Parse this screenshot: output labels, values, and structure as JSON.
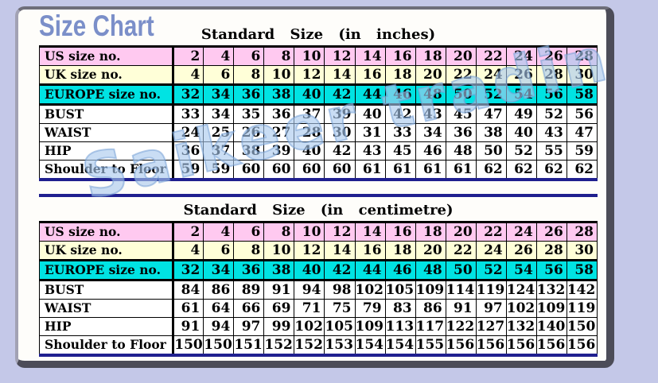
{
  "page_title": "Size Chart",
  "watermark": "Saikeer trading",
  "colors": {
    "background": "#c4c8e8",
    "panel": "#fefdfa",
    "title_blue": "#7b8fc9",
    "row_pink": "#ffc9f0",
    "row_yellow": "#ffffd8",
    "row_cyan": "#00e3e3",
    "row_white": "#ffffff",
    "divider_navy": "#1f1f8f",
    "watermark_blue": "#a8c8ee"
  },
  "chart_data": [
    {
      "type": "table",
      "title": "Standard Size (in inches)",
      "rows": [
        {
          "label": "US size no.",
          "bg": "pink",
          "values": [
            2,
            4,
            6,
            8,
            10,
            12,
            14,
            16,
            18,
            20,
            22,
            24,
            26,
            28
          ]
        },
        {
          "label": "UK size no.",
          "bg": "yellow",
          "values": [
            4,
            6,
            8,
            10,
            12,
            14,
            16,
            18,
            20,
            22,
            24,
            26,
            28,
            30
          ]
        },
        {
          "label": "EUROPE size no.",
          "bg": "cyan",
          "values": [
            32,
            34,
            36,
            38,
            40,
            42,
            44,
            46,
            48,
            50,
            52,
            54,
            56,
            58
          ]
        },
        {
          "label": "BUST",
          "bg": "white",
          "values": [
            33,
            34,
            35,
            36,
            37,
            39,
            40,
            42,
            43,
            45,
            47,
            49,
            52,
            56
          ]
        },
        {
          "label": "WAIST",
          "bg": "white",
          "values": [
            24,
            25,
            26,
            27,
            28,
            30,
            31,
            33,
            34,
            36,
            38,
            40,
            43,
            47
          ]
        },
        {
          "label": "HIP",
          "bg": "white",
          "values": [
            36,
            37,
            38,
            39,
            40,
            42,
            43,
            45,
            46,
            48,
            50,
            52,
            55,
            59
          ]
        },
        {
          "label": "Shoulder to Floor",
          "bg": "white",
          "values": [
            59,
            59,
            60,
            60,
            60,
            60,
            61,
            61,
            61,
            61,
            62,
            62,
            62,
            62
          ]
        }
      ]
    },
    {
      "type": "table",
      "title": "Standard Size (in centimetre)",
      "rows": [
        {
          "label": "US size no.",
          "bg": "pink",
          "values": [
            2,
            4,
            6,
            8,
            10,
            12,
            14,
            16,
            18,
            20,
            22,
            24,
            26,
            28
          ]
        },
        {
          "label": "UK size no.",
          "bg": "yellow",
          "values": [
            4,
            6,
            8,
            10,
            12,
            14,
            16,
            18,
            20,
            22,
            24,
            26,
            28,
            30
          ]
        },
        {
          "label": "EUROPE size no.",
          "bg": "cyan",
          "values": [
            32,
            34,
            36,
            38,
            40,
            42,
            44,
            46,
            48,
            50,
            52,
            54,
            56,
            58
          ]
        },
        {
          "label": "BUST",
          "bg": "white",
          "values": [
            84,
            86,
            89,
            91,
            94,
            98,
            102,
            105,
            109,
            114,
            119,
            124,
            132,
            142
          ]
        },
        {
          "label": "WAIST",
          "bg": "white",
          "values": [
            61,
            64,
            66,
            69,
            71,
            75,
            79,
            83,
            86,
            91,
            97,
            102,
            109,
            119
          ]
        },
        {
          "label": "HIP",
          "bg": "white",
          "values": [
            91,
            94,
            97,
            99,
            102,
            105,
            109,
            113,
            117,
            122,
            127,
            132,
            140,
            150
          ]
        },
        {
          "label": "Shoulder to Floor",
          "bg": "white",
          "values": [
            150,
            150,
            151,
            152,
            152,
            153,
            154,
            154,
            155,
            156,
            156,
            156,
            156,
            156
          ]
        }
      ]
    }
  ]
}
